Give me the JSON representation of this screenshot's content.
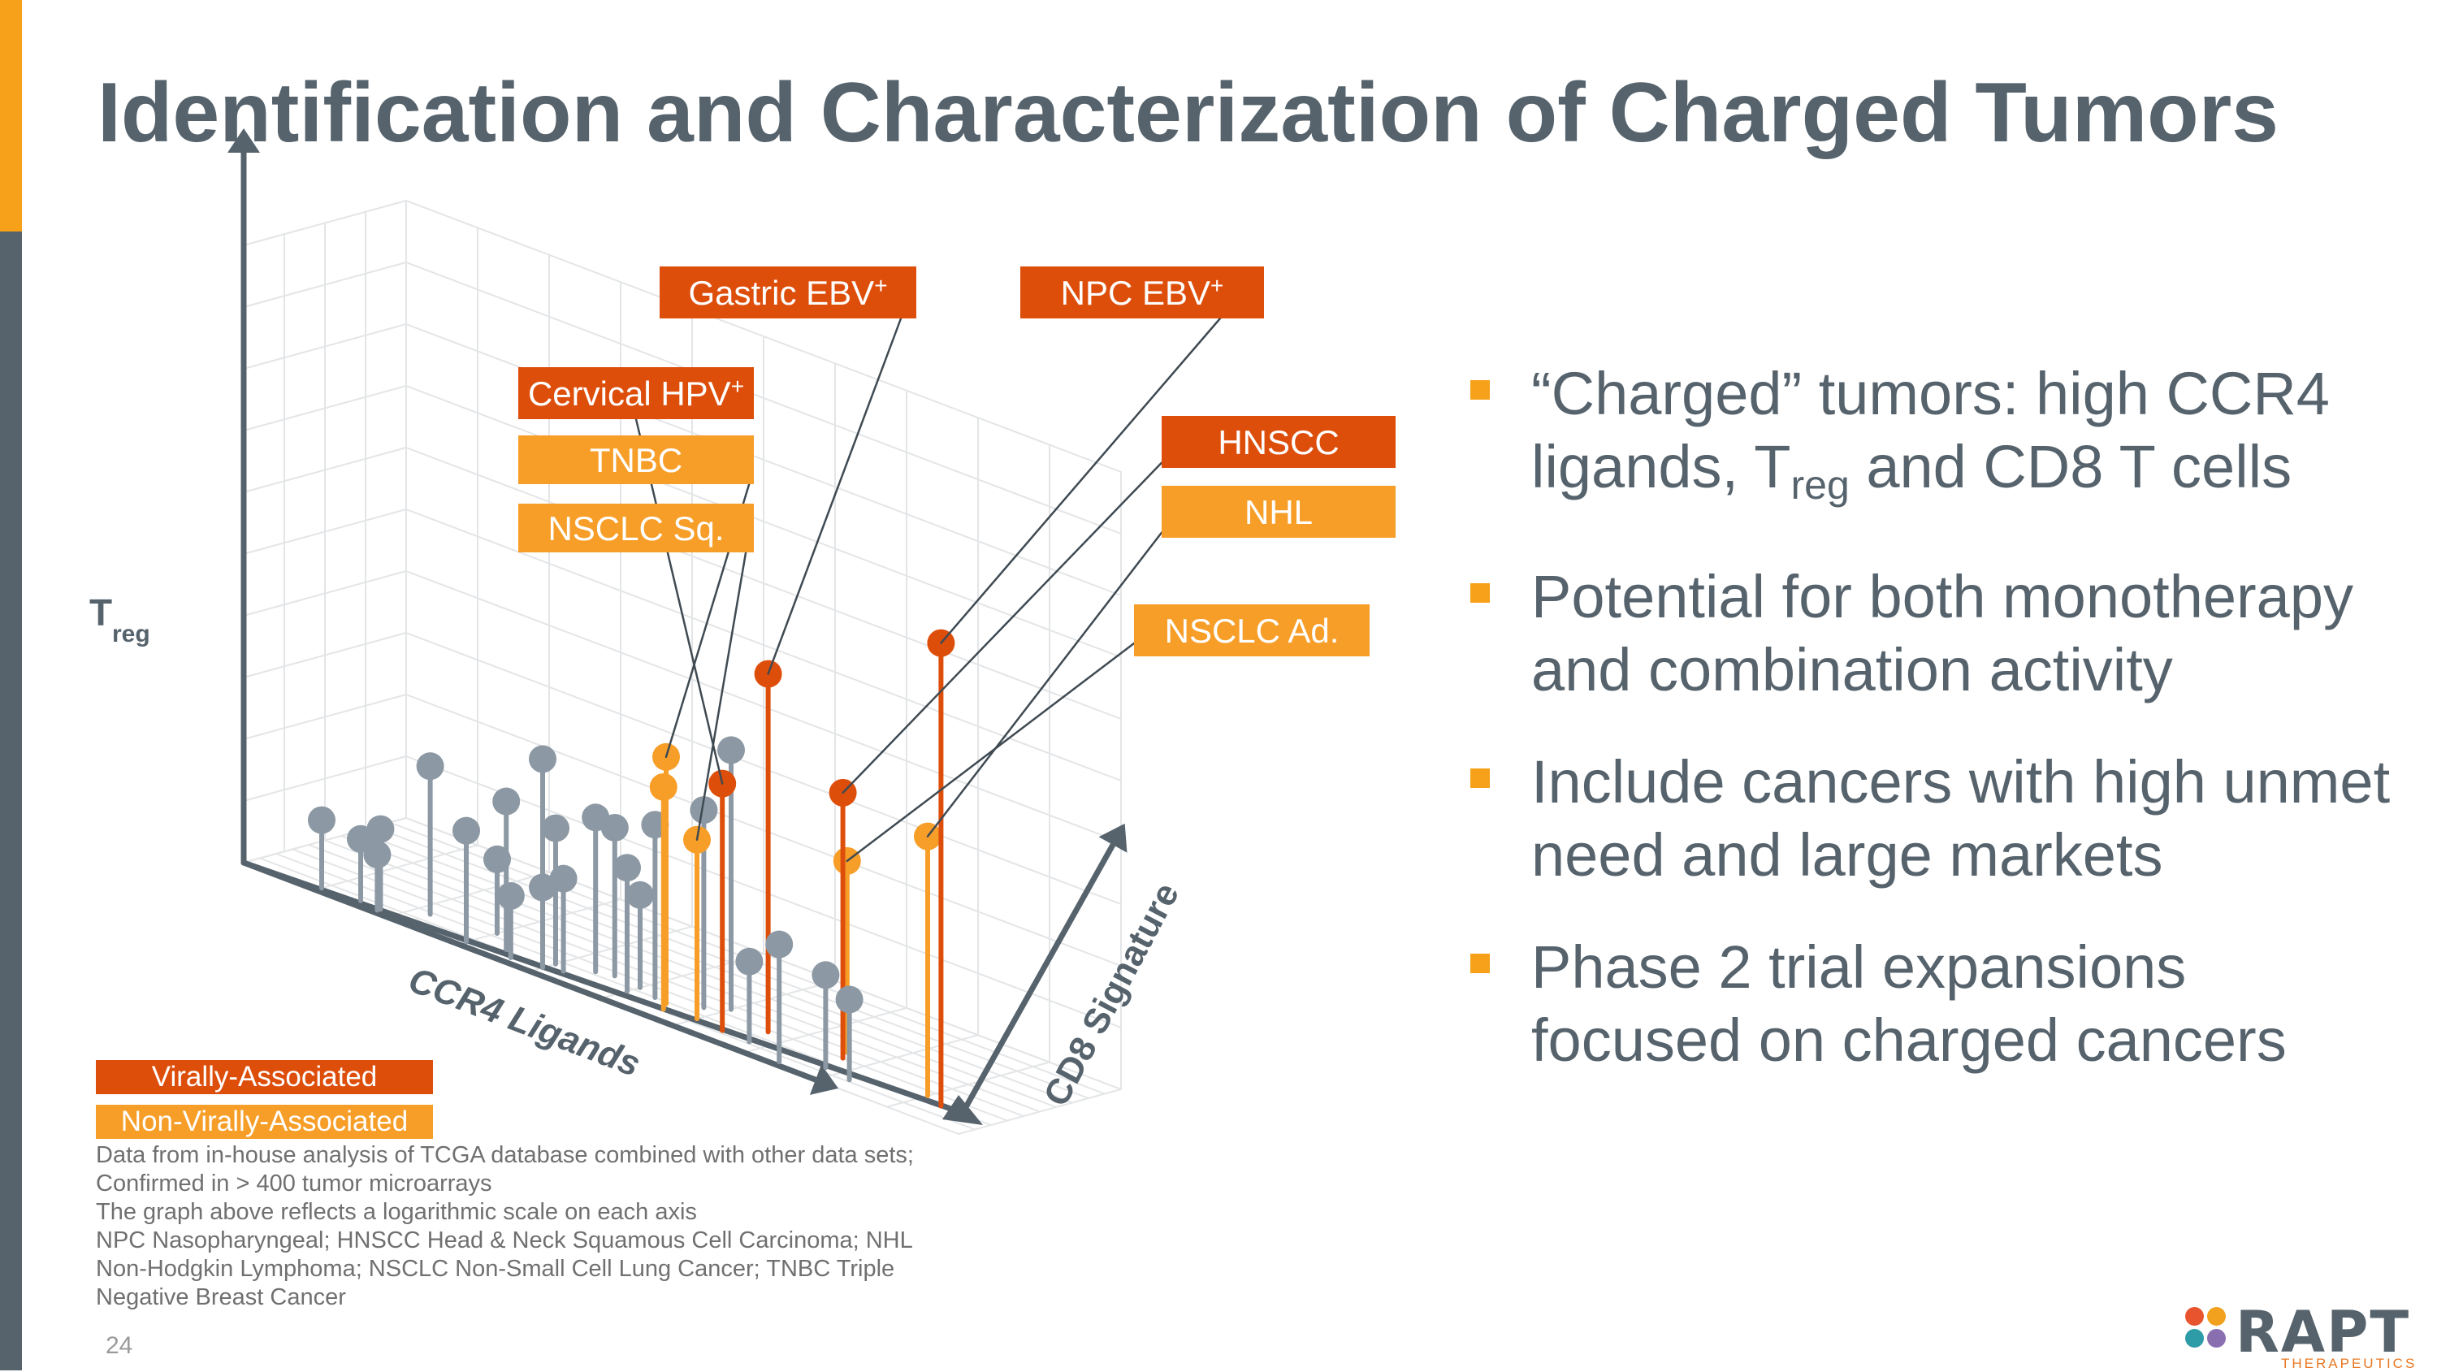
{
  "slide": {
    "title": "Identification and Characterization of Charged Tumors",
    "page_number": "24"
  },
  "colors": {
    "accent_orange": "#F7A11A",
    "sidebar_gray": "#56636C",
    "viral": "#DE4E0B",
    "nonviral": "#F79E28",
    "other": "#8C98A3"
  },
  "bullets": [
    {
      "pre": "“Charged” tumors: high CCR4 ligands, T",
      "sub": "reg",
      "post": " and CD8 T cells"
    },
    {
      "pre": "Potential for both monotherapy and combination activity",
      "sub": "",
      "post": ""
    },
    {
      "pre": "Include cancers with high unmet need and large markets",
      "sub": "",
      "post": ""
    },
    {
      "pre": "Phase 2 trial expansions focused on charged cancers",
      "sub": "",
      "post": ""
    }
  ],
  "legend": {
    "viral": "Virally-Associated",
    "nonviral": "Non-Virally-Associated"
  },
  "footnotes": [
    "Data from in-house analysis of TCGA database combined with other data sets;",
    "Confirmed in > 400 tumor microarrays",
    "The graph above reflects a logarithmic scale on each axis",
    "NPC Nasopharyngeal; HNSCC Head & Neck Squamous Cell Carcinoma; NHL",
    "Non-Hodgkin Lymphoma; NSCLC Non-Small Cell Lung Cancer; TNBC Triple",
    "Negative Breast Cancer"
  ],
  "logo": {
    "name": "RAPT",
    "subtitle": "THERAPEUTICS",
    "dot_colors": [
      "#E8542E",
      "#F2A11F",
      "#2E9CA6",
      "#8A6FB0"
    ]
  },
  "chart_data": {
    "type": "scatter",
    "projection": "3d-lollipop",
    "scale": "log",
    "axes": {
      "vertical": {
        "label": "T",
        "sub": "reg"
      },
      "depth_left": {
        "label": "CCR4 Ligands"
      },
      "depth_right": {
        "label": "CD8 Signature"
      }
    },
    "value_range": [
      0,
      1
    ],
    "labeled_points": [
      {
        "label": "Gastric EBV",
        "sup": "+",
        "category": "viral",
        "ccr4": 0.67,
        "cd8": 0.28,
        "treg": 0.58
      },
      {
        "label": "NPC EBV",
        "sup": "+",
        "category": "viral",
        "ccr4": 0.93,
        "cd8": 0.2,
        "treg": 0.75
      },
      {
        "label": "Cervical HPV",
        "sup": "+",
        "category": "viral",
        "ccr4": 0.64,
        "cd8": 0.13,
        "treg": 0.4
      },
      {
        "label": "TNBC",
        "sup": "",
        "category": "nonviral",
        "ccr4": 0.55,
        "cd8": 0.18,
        "treg": 0.4
      },
      {
        "label": "NSCLC Sq.",
        "sup": "",
        "category": "nonviral",
        "ccr4": 0.6,
        "cd8": 0.15,
        "treg": 0.29
      },
      {
        "label": "HNSCC",
        "sup": "",
        "category": "viral",
        "ccr4": 0.77,
        "cd8": 0.3,
        "treg": 0.43
      },
      {
        "label": "NHL",
        "sup": "",
        "category": "nonviral",
        "ccr4": 0.9,
        "cd8": 0.25,
        "treg": 0.42
      },
      {
        "label": "NSCLC Ad.",
        "sup": "",
        "category": "nonviral",
        "ccr4": 0.76,
        "cd8": 0.37,
        "treg": 0.31
      }
    ],
    "unlabeled_points": [
      {
        "category": "nonviral",
        "ccr4": 0.56,
        "cd8": 0.12,
        "treg": 0.36
      },
      {
        "category": "other",
        "ccr4": 0.1,
        "cd8": 0.04,
        "treg": 0.11
      },
      {
        "category": "other",
        "ccr4": 0.15,
        "cd8": 0.06,
        "treg": 0.1
      },
      {
        "category": "other",
        "ccr4": 0.18,
        "cd8": 0.03,
        "treg": 0.09
      },
      {
        "category": "other",
        "ccr4": 0.18,
        "cd8": 0.05,
        "treg": 0.13
      },
      {
        "category": "other",
        "ccr4": 0.22,
        "cd8": 0.18,
        "treg": 0.24
      },
      {
        "category": "other",
        "ccr4": 0.3,
        "cd8": 0.05,
        "treg": 0.18
      },
      {
        "category": "other",
        "ccr4": 0.34,
        "cd8": 0.12,
        "treg": 0.24
      },
      {
        "category": "other",
        "ccr4": 0.36,
        "cd8": 0.06,
        "treg": 0.1
      },
      {
        "category": "other",
        "ccr4": 0.4,
        "cd8": 0.08,
        "treg": 0.13
      },
      {
        "category": "other",
        "ccr4": 0.42,
        "cd8": 0.12,
        "treg": 0.15
      },
      {
        "category": "other",
        "ccr4": 0.4,
        "cd8": 0.16,
        "treg": 0.22
      },
      {
        "category": "other",
        "ccr4": 0.35,
        "cd8": 0.3,
        "treg": 0.3
      },
      {
        "category": "other",
        "ccr4": 0.44,
        "cd8": 0.23,
        "treg": 0.25
      },
      {
        "category": "other",
        "ccr4": 0.46,
        "cd8": 0.26,
        "treg": 0.24
      },
      {
        "category": "other",
        "ccr4": 0.5,
        "cd8": 0.16,
        "treg": 0.2
      },
      {
        "category": "other",
        "ccr4": 0.53,
        "cd8": 0.2,
        "treg": 0.28
      },
      {
        "category": "other",
        "ccr4": 0.58,
        "cd8": 0.28,
        "treg": 0.32
      },
      {
        "category": "other",
        "ccr4": 0.6,
        "cd8": 0.36,
        "treg": 0.42
      },
      {
        "category": "other",
        "ccr4": 0.68,
        "cd8": 0.12,
        "treg": 0.13
      },
      {
        "category": "other",
        "ccr4": 0.74,
        "cd8": 0.04,
        "treg": 0.19
      },
      {
        "category": "other",
        "ccr4": 0.78,
        "cd8": 0.15,
        "treg": 0.15
      },
      {
        "category": "other",
        "ccr4": 0.82,
        "cd8": 0.12,
        "treg": 0.13
      },
      {
        "category": "other",
        "ccr4": 0.3,
        "cd8": 0.24,
        "treg": 0.12
      },
      {
        "category": "other",
        "ccr4": 0.5,
        "cd8": 0.24,
        "treg": 0.15
      }
    ]
  }
}
